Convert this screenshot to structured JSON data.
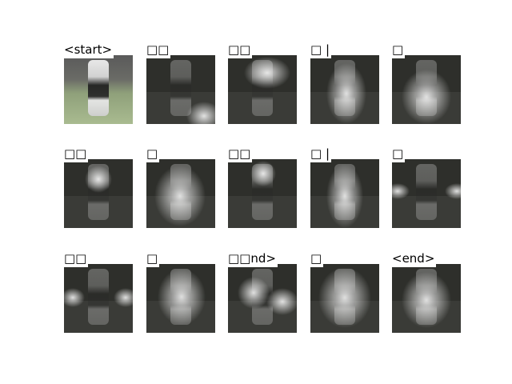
{
  "labels": [
    "<start>",
    "□□",
    "□□",
    "□ |",
    "□",
    "□□",
    "□",
    "□□",
    "□ |",
    "□",
    "□□",
    "□",
    "□□nd>",
    "□",
    "<end>"
  ]
}
